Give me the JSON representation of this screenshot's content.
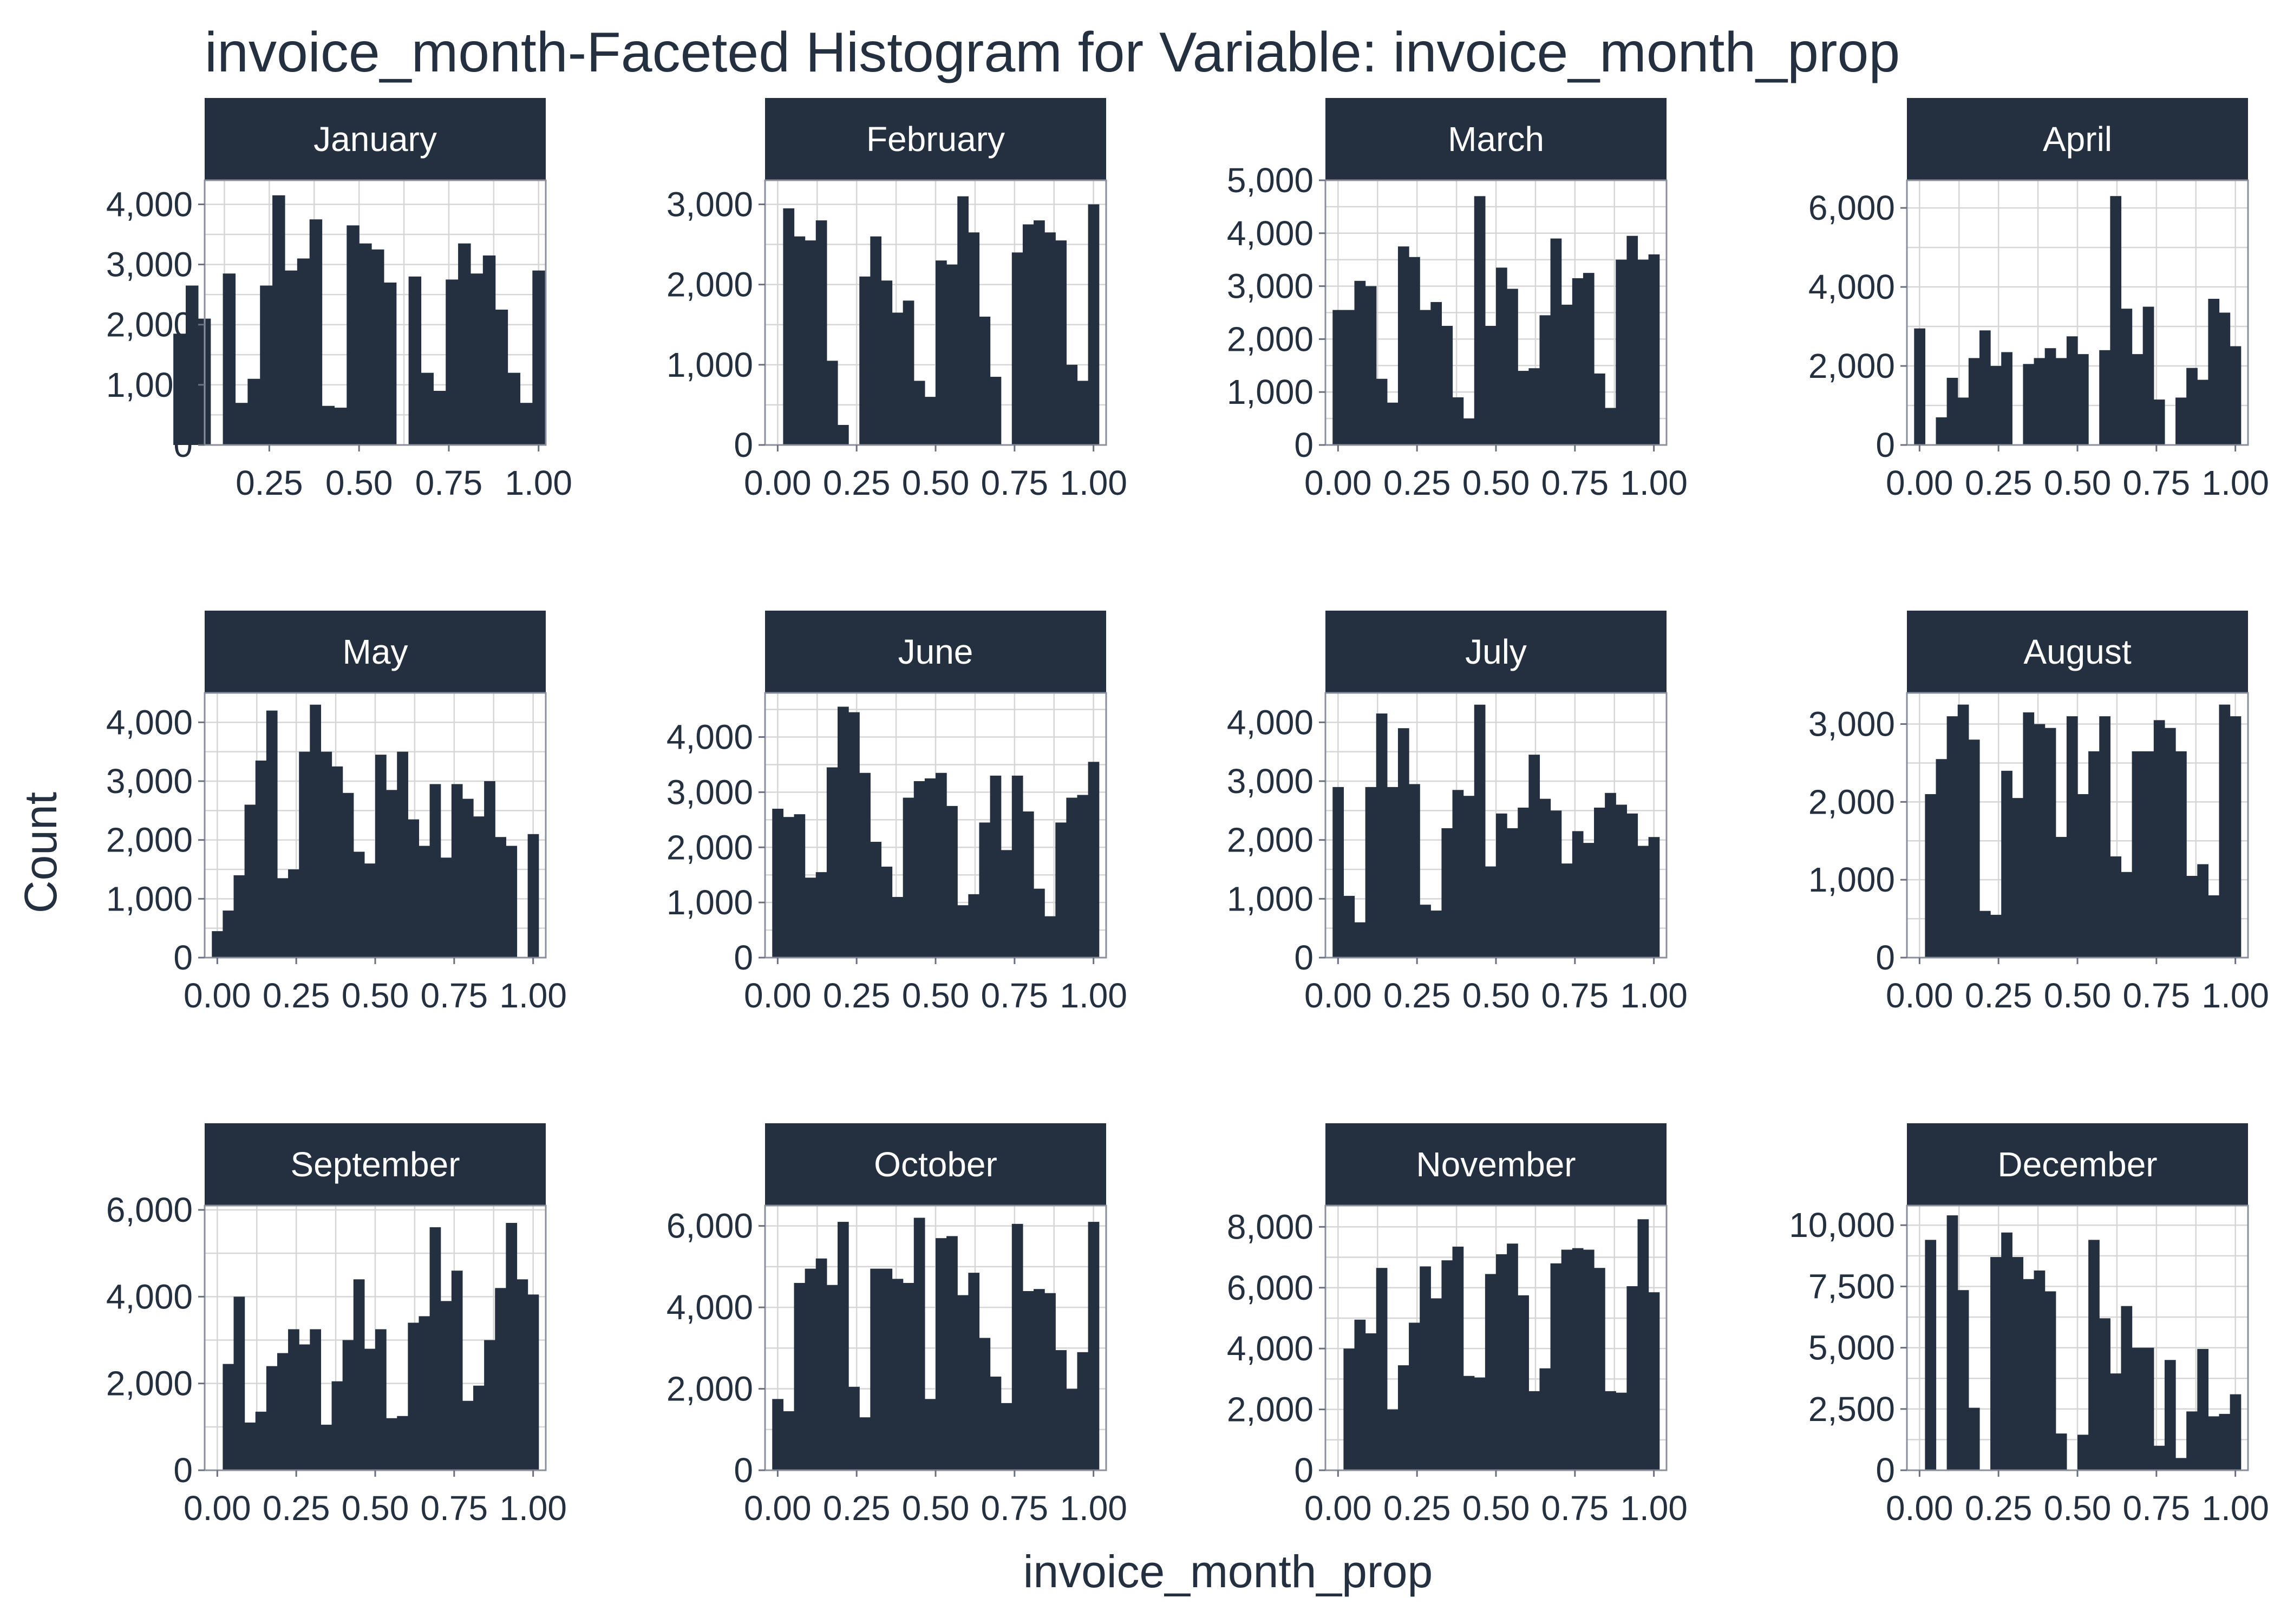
{
  "chart_data": {
    "type": "histogram-facets",
    "title": "invoice_month-Faceted Histogram for Variable: invoice_month_prop",
    "xlabel": "invoice_month_prop",
    "ylabel": "Count",
    "bar_color": "#243040",
    "strip_color": "#243040",
    "grid": true,
    "panels": [
      {
        "label": "January",
        "xlim": [
          0.07,
          1.02
        ],
        "xticks": [
          0.25,
          0.5,
          0.75,
          1.0
        ],
        "xtick_labels": [
          "0.25",
          "0.50",
          "0.75",
          "1.00"
        ],
        "ylim": [
          0,
          4400
        ],
        "yticks": [
          0,
          1000,
          2000,
          3000,
          4000
        ],
        "ytick_labels": [
          "0",
          "1,000",
          "2,000",
          "3,000",
          "4,000"
        ],
        "counts": [
          0,
          1850,
          2650,
          2100,
          0,
          2850,
          700,
          1100,
          2650,
          4150,
          2900,
          3100,
          3750,
          650,
          620,
          3650,
          3350,
          3250,
          2700,
          0,
          2800,
          1200,
          900,
          2750,
          3350,
          2850,
          3150,
          2250,
          1200,
          700,
          2900
        ]
      },
      {
        "label": "February",
        "xlim": [
          -0.04,
          1.04
        ],
        "xticks": [
          0,
          0.25,
          0.5,
          0.75,
          1.0
        ],
        "xtick_labels": [
          "0.00",
          "0.25",
          "0.50",
          "0.75",
          "1.00"
        ],
        "ylim": [
          0,
          3300
        ],
        "yticks": [
          0,
          1000,
          2000,
          3000
        ],
        "ytick_labels": [
          "0",
          "1,000",
          "2,000",
          "3,000"
        ],
        "counts": [
          2950,
          2600,
          2550,
          2800,
          1050,
          250,
          0,
          2100,
          2600,
          2050,
          1650,
          1800,
          800,
          600,
          2300,
          2250,
          3100,
          2650,
          1600,
          850,
          0,
          2400,
          2750,
          2800,
          2650,
          2550,
          1000,
          800,
          3000
        ]
      },
      {
        "label": "March",
        "xlim": [
          -0.04,
          1.04
        ],
        "xticks": [
          0,
          0.25,
          0.5,
          0.75,
          1.0
        ],
        "xtick_labels": [
          "0.00",
          "0.25",
          "0.50",
          "0.75",
          "1.00"
        ],
        "ylim": [
          0,
          5000
        ],
        "yticks": [
          0,
          1000,
          2000,
          3000,
          4000,
          5000
        ],
        "ytick_labels": [
          "0",
          "1,000",
          "2,000",
          "3,000",
          "4,000",
          "5,000"
        ],
        "counts": [
          2550,
          2550,
          3100,
          3000,
          1250,
          800,
          3750,
          3550,
          2550,
          2700,
          2250,
          900,
          500,
          4700,
          2250,
          3350,
          2950,
          1400,
          1450,
          2450,
          3900,
          2650,
          3150,
          3250,
          1350,
          700,
          3500,
          3950,
          3500,
          3600
        ]
      },
      {
        "label": "April",
        "xlim": [
          -0.04,
          1.04
        ],
        "xticks": [
          0,
          0.25,
          0.5,
          0.75,
          1.0
        ],
        "xtick_labels": [
          "0.00",
          "0.25",
          "0.50",
          "0.75",
          "1.00"
        ],
        "ylim": [
          0,
          6700
        ],
        "yticks": [
          0,
          2000,
          4000,
          6000
        ],
        "ytick_labels": [
          "0",
          "2,000",
          "4,000",
          "6,000"
        ],
        "counts": [
          2950,
          0,
          700,
          1700,
          1200,
          2200,
          2900,
          2000,
          2350,
          0,
          2050,
          2200,
          2450,
          2200,
          2750,
          2300,
          0,
          2400,
          6300,
          3450,
          2300,
          3500,
          1150,
          0,
          1200,
          1950,
          1650,
          3700,
          3350,
          2500
        ]
      },
      {
        "label": "May",
        "xlim": [
          -0.04,
          1.04
        ],
        "xticks": [
          0,
          0.25,
          0.5,
          0.75,
          1.0
        ],
        "xtick_labels": [
          "0.00",
          "0.25",
          "0.50",
          "0.75",
          "1.00"
        ],
        "ylim": [
          0,
          4500
        ],
        "yticks": [
          0,
          1000,
          2000,
          3000,
          4000
        ],
        "ytick_labels": [
          "0",
          "1,000",
          "2,000",
          "3,000",
          "4,000"
        ],
        "counts": [
          450,
          800,
          1400,
          2600,
          3350,
          4200,
          1350,
          1500,
          3500,
          4300,
          3500,
          3250,
          2800,
          1800,
          1600,
          3450,
          2850,
          3500,
          2350,
          1900,
          2950,
          1700,
          2950,
          2700,
          2400,
          3000,
          2050,
          1900,
          0,
          2100
        ]
      },
      {
        "label": "June",
        "xlim": [
          -0.04,
          1.04
        ],
        "xticks": [
          0,
          0.25,
          0.5,
          0.75,
          1.0
        ],
        "xtick_labels": [
          "0.00",
          "0.25",
          "0.50",
          "0.75",
          "1.00"
        ],
        "ylim": [
          0,
          4800
        ],
        "yticks": [
          0,
          1000,
          2000,
          3000,
          4000
        ],
        "ytick_labels": [
          "0",
          "1,000",
          "2,000",
          "3,000",
          "4,000"
        ],
        "counts": [
          2700,
          2550,
          2600,
          1450,
          1550,
          3450,
          4550,
          4450,
          3350,
          2100,
          1650,
          1100,
          2900,
          3200,
          3250,
          3350,
          2750,
          950,
          1150,
          2450,
          3300,
          1950,
          3300,
          2650,
          1250,
          750,
          2450,
          2900,
          2950,
          3550
        ]
      },
      {
        "label": "July",
        "xlim": [
          -0.04,
          1.04
        ],
        "xticks": [
          0,
          0.25,
          0.5,
          0.75,
          1.0
        ],
        "xtick_labels": [
          "0.00",
          "0.25",
          "0.50",
          "0.75",
          "1.00"
        ],
        "ylim": [
          0,
          4500
        ],
        "yticks": [
          0,
          1000,
          2000,
          3000,
          4000
        ],
        "ytick_labels": [
          "0",
          "1,000",
          "2,000",
          "3,000",
          "4,000"
        ],
        "counts": [
          2900,
          1050,
          600,
          2900,
          4150,
          2900,
          3900,
          2950,
          900,
          800,
          2200,
          2850,
          2750,
          4300,
          1550,
          2450,
          2200,
          2550,
          3450,
          2700,
          2500,
          1600,
          2150,
          1950,
          2550,
          2800,
          2600,
          2450,
          1900,
          2050
        ]
      },
      {
        "label": "August",
        "xlim": [
          -0.04,
          1.04
        ],
        "xticks": [
          0,
          0.25,
          0.5,
          0.75,
          1.0
        ],
        "xtick_labels": [
          "0.00",
          "0.25",
          "0.50",
          "0.75",
          "1.00"
        ],
        "ylim": [
          0,
          3400
        ],
        "yticks": [
          0,
          1000,
          2000,
          3000
        ],
        "ytick_labels": [
          "0",
          "1,000",
          "2,000",
          "3,000"
        ],
        "counts": [
          2100,
          2550,
          3100,
          3250,
          2800,
          600,
          550,
          2400,
          2050,
          3150,
          3000,
          2950,
          1550,
          3100,
          2100,
          2650,
          3100,
          1300,
          1100,
          2650,
          2650,
          3050,
          2950,
          2650,
          1050,
          1200,
          800,
          3250,
          3100
        ]
      },
      {
        "label": "September",
        "xlim": [
          -0.04,
          1.04
        ],
        "xticks": [
          0,
          0.25,
          0.5,
          0.75,
          1.0
        ],
        "xtick_labels": [
          "0.00",
          "0.25",
          "0.50",
          "0.75",
          "1.00"
        ],
        "ylim": [
          0,
          6100
        ],
        "yticks": [
          0,
          2000,
          4000,
          6000
        ],
        "ytick_labels": [
          "0",
          "2,000",
          "4,000",
          "6,000"
        ],
        "counts": [
          2450,
          4000,
          1100,
          1350,
          2400,
          2700,
          3250,
          2900,
          3250,
          1050,
          2050,
          3000,
          4400,
          2800,
          3250,
          1200,
          1250,
          3400,
          3550,
          5600,
          3900,
          4600,
          1600,
          1950,
          3000,
          4200,
          5700,
          4400,
          4050
        ]
      },
      {
        "label": "October",
        "xlim": [
          -0.04,
          1.04
        ],
        "xticks": [
          0,
          0.25,
          0.5,
          0.75,
          1.0
        ],
        "xtick_labels": [
          "0.00",
          "0.25",
          "0.50",
          "0.75",
          "1.00"
        ],
        "ylim": [
          0,
          6500
        ],
        "yticks": [
          0,
          2000,
          4000,
          6000
        ],
        "ytick_labels": [
          "0",
          "2,000",
          "4,000",
          "6,000"
        ],
        "counts": [
          1750,
          1450,
          4600,
          4950,
          5200,
          4550,
          6100,
          2050,
          1300,
          4950,
          4950,
          4700,
          4600,
          6200,
          1750,
          5700,
          5750,
          4300,
          4850,
          3250,
          2300,
          1650,
          6050,
          4400,
          4450,
          4350,
          2950,
          2000,
          2900,
          6100
        ]
      },
      {
        "label": "November",
        "xlim": [
          -0.04,
          1.04
        ],
        "xticks": [
          0,
          0.25,
          0.5,
          0.75,
          1.0
        ],
        "xtick_labels": [
          "0.00",
          "0.25",
          "0.50",
          "0.75",
          "1.00"
        ],
        "ylim": [
          0,
          8700
        ],
        "yticks": [
          0,
          2000,
          4000,
          6000,
          8000
        ],
        "ytick_labels": [
          "0",
          "2,000",
          "4,000",
          "6,000",
          "8,000"
        ],
        "counts": [
          4000,
          4950,
          4500,
          6650,
          2000,
          3450,
          4850,
          6700,
          5650,
          6900,
          7350,
          3100,
          3050,
          6450,
          7100,
          7450,
          5750,
          2600,
          3350,
          6800,
          7250,
          7300,
          7250,
          6650,
          2600,
          2550,
          6050,
          8250,
          5850
        ]
      },
      {
        "label": "December",
        "xlim": [
          -0.04,
          1.04
        ],
        "xticks": [
          0,
          0.25,
          0.5,
          0.75,
          1.0
        ],
        "xtick_labels": [
          "0.00",
          "0.25",
          "0.50",
          "0.75",
          "1.00"
        ],
        "ylim": [
          0,
          10800
        ],
        "yticks": [
          0,
          2500,
          5000,
          7500,
          10000
        ],
        "ytick_labels": [
          "0",
          "2,500",
          "5,000",
          "7,500",
          "10,000"
        ],
        "counts": [
          9400,
          0,
          10400,
          7350,
          2550,
          0,
          8700,
          9700,
          8700,
          7800,
          8150,
          7300,
          1500,
          0,
          1450,
          9400,
          6200,
          3950,
          6700,
          5000,
          5000,
          1000,
          4500,
          500,
          2400,
          4950,
          2200,
          2300,
          3100
        ]
      }
    ]
  }
}
